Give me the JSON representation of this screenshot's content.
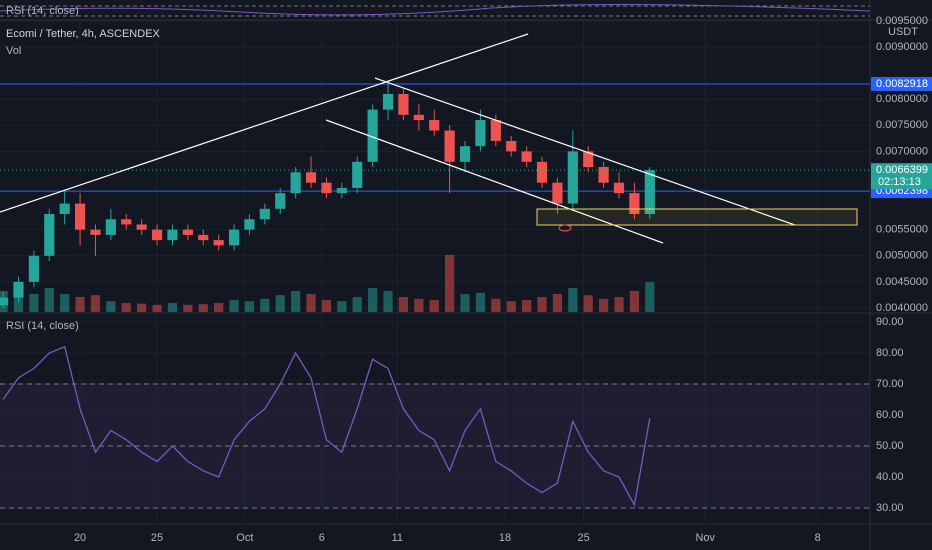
{
  "chart_data": {
    "type": "candlestick",
    "title": "Ecomi / Tether, 4h, ASCENDEX",
    "volume_label": "Vol",
    "currency": "USDT",
    "up_color": "#26a69a",
    "down_color": "#ef5350",
    "xlim": [
      -0.2,
      56.3
    ],
    "xticks": [
      {
        "value": 5,
        "label": "20"
      },
      {
        "value": 10,
        "label": "25"
      },
      {
        "value": 15.7,
        "label": "Oct"
      },
      {
        "value": 20.7,
        "label": "6"
      },
      {
        "value": 25.6,
        "label": "11"
      },
      {
        "value": 32.6,
        "label": "18"
      },
      {
        "value": 37.7,
        "label": "25"
      },
      {
        "value": 45.6,
        "label": "Nov"
      },
      {
        "value": 52.9,
        "label": "8"
      }
    ],
    "ylim": [
      0.003923,
      0.009517
    ],
    "yticks": [
      {
        "value": 0.0095,
        "label": "0.0095000"
      },
      {
        "value": 0.009,
        "label": "0.0090000"
      },
      {
        "value": 0.008,
        "label": "0.0080000"
      },
      {
        "value": 0.0075,
        "label": "0.0075000"
      },
      {
        "value": 0.007,
        "label": "0.0070000"
      },
      {
        "value": 0.0055,
        "label": "0.0055000"
      },
      {
        "value": 0.005,
        "label": "0.0050000"
      },
      {
        "value": 0.0045,
        "label": "0.0045000"
      },
      {
        "value": 0.004,
        "label": "0.0040000"
      }
    ],
    "open": [
      0.00405,
      0.0042,
      0.0045,
      0.005,
      0.0058,
      0.006,
      0.0055,
      0.0054,
      0.0057,
      0.0056,
      0.0055,
      0.0053,
      0.0055,
      0.0054,
      0.0053,
      0.0052,
      0.0055,
      0.0057,
      0.0059,
      0.0062,
      0.0066,
      0.0064,
      0.0062,
      0.0063,
      0.0068,
      0.0078,
      0.0081,
      0.0077,
      0.0076,
      0.0074,
      0.0068,
      0.0071,
      0.0076,
      0.0072,
      0.007,
      0.0068,
      0.0064,
      0.006,
      0.007,
      0.0067,
      0.0064,
      0.0062,
      0.0058
    ],
    "high": [
      0.0043,
      0.0046,
      0.0051,
      0.0059,
      0.00625,
      0.0062,
      0.0056,
      0.0059,
      0.0058,
      0.0057,
      0.0056,
      0.0056,
      0.0056,
      0.0055,
      0.0054,
      0.0056,
      0.0058,
      0.006,
      0.0063,
      0.0067,
      0.0069,
      0.0065,
      0.0064,
      0.0069,
      0.0079,
      0.0083,
      0.0082,
      0.0079,
      0.0078,
      0.0075,
      0.0072,
      0.0078,
      0.0077,
      0.0073,
      0.0071,
      0.0069,
      0.0065,
      0.0074,
      0.0071,
      0.0068,
      0.0066,
      0.0064,
      0.0067
    ],
    "low": [
      0.004,
      0.0041,
      0.0044,
      0.0049,
      0.0056,
      0.0052,
      0.005,
      0.0053,
      0.0055,
      0.0054,
      0.0052,
      0.0052,
      0.0053,
      0.0052,
      0.0051,
      0.0051,
      0.0054,
      0.0056,
      0.0058,
      0.0061,
      0.0063,
      0.0061,
      0.0061,
      0.0062,
      0.0067,
      0.0076,
      0.0076,
      0.0074,
      0.0073,
      0.0062,
      0.0066,
      0.007,
      0.0071,
      0.0069,
      0.0067,
      0.0063,
      0.0058,
      0.0059,
      0.0066,
      0.0063,
      0.0061,
      0.0057,
      0.0057
    ],
    "close": [
      0.0042,
      0.0045,
      0.005,
      0.0058,
      0.006,
      0.0055,
      0.0054,
      0.0057,
      0.0056,
      0.0055,
      0.0053,
      0.0055,
      0.0054,
      0.0053,
      0.0052,
      0.0055,
      0.0057,
      0.0059,
      0.0062,
      0.0066,
      0.0064,
      0.0062,
      0.0063,
      0.0068,
      0.0078,
      0.0081,
      0.0077,
      0.0076,
      0.0074,
      0.0068,
      0.0071,
      0.0076,
      0.0072,
      0.007,
      0.0068,
      0.0064,
      0.006,
      0.007,
      0.0067,
      0.0064,
      0.0062,
      0.0058,
      0.0066399
    ],
    "volume": [
      35,
      25,
      30,
      40,
      30,
      25,
      28,
      18,
      15,
      14,
      12,
      15,
      12,
      13,
      15,
      20,
      18,
      22,
      28,
      35,
      30,
      20,
      18,
      25,
      40,
      35,
      25,
      22,
      20,
      95,
      30,
      32,
      22,
      18,
      20,
      25,
      30,
      40,
      28,
      22,
      25,
      35,
      50
    ],
    "price_lines": [
      0.0082918,
      0.0062398
    ],
    "price_line_color": "#2962ff",
    "last_price": 0.0066399,
    "countdown": "02:13:13",
    "rsi": {
      "label": "RSI (14, close)",
      "color": "#7e57c2",
      "ylim": [
        25.5,
        91.3
      ],
      "yticks": [
        {
          "value": 90,
          "label": "90.00"
        },
        {
          "value": 80,
          "label": "80.00"
        },
        {
          "value": 70,
          "label": "70.00"
        },
        {
          "value": 60,
          "label": "60.00"
        },
        {
          "value": 50,
          "label": "50.00"
        },
        {
          "value": 40,
          "label": "40.00"
        },
        {
          "value": 30,
          "label": "30.00"
        }
      ],
      "levels": [
        70,
        50,
        30
      ],
      "values": [
        65,
        72,
        75,
        80,
        82,
        62,
        48,
        55,
        52,
        48,
        45,
        50,
        45,
        42,
        40,
        52,
        58,
        62,
        70,
        80,
        72,
        52,
        48,
        62,
        78,
        75,
        62,
        55,
        52,
        42,
        55,
        62,
        45,
        42,
        38,
        35,
        38,
        58,
        48,
        42,
        40,
        31,
        59
      ]
    }
  }
}
